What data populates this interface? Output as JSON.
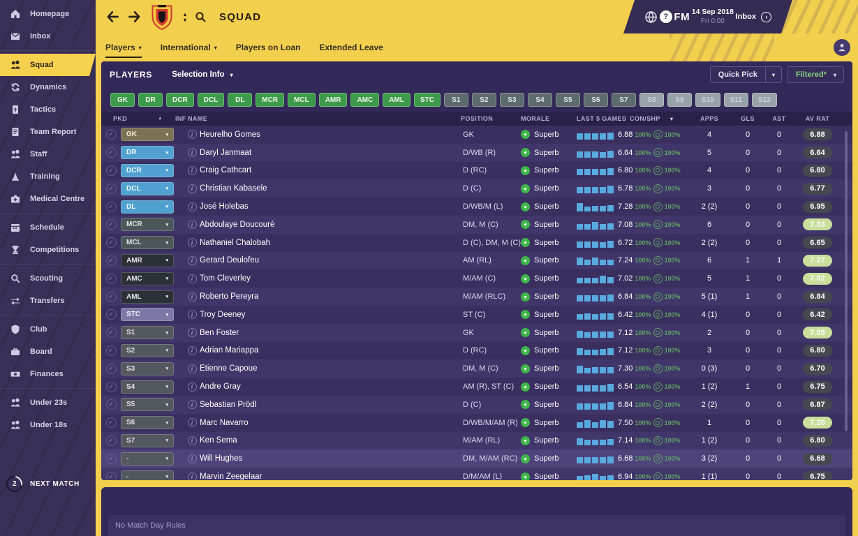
{
  "header": {
    "title": "SQUAD",
    "date": "14 Sep 2018",
    "time": "Fri 0:00",
    "fm": "FM",
    "inbox": "Inbox"
  },
  "tabs": [
    {
      "label": "Players",
      "caret": true,
      "active": true
    },
    {
      "label": "International",
      "caret": true,
      "active": false
    },
    {
      "label": "Players on Loan",
      "caret": false,
      "active": false
    },
    {
      "label": "Extended Leave",
      "caret": false,
      "active": false
    }
  ],
  "sidebar": {
    "groups": [
      [
        {
          "label": "Homepage",
          "icon": "home-icon"
        },
        {
          "label": "Inbox",
          "icon": "mail-icon"
        }
      ],
      [
        {
          "label": "Squad",
          "icon": "squad-icon",
          "active": true
        },
        {
          "label": "Dynamics",
          "icon": "dynamics-icon"
        },
        {
          "label": "Tactics",
          "icon": "tactics-icon"
        },
        {
          "label": "Team Report",
          "icon": "report-icon"
        },
        {
          "label": "Staff",
          "icon": "staff-icon"
        },
        {
          "label": "Training",
          "icon": "training-icon"
        },
        {
          "label": "Medical Centre",
          "icon": "medical-icon"
        }
      ],
      [
        {
          "label": "Schedule",
          "icon": "calendar-icon"
        },
        {
          "label": "Competitions",
          "icon": "trophy-icon"
        }
      ],
      [
        {
          "label": "Scouting",
          "icon": "scout-icon"
        },
        {
          "label": "Transfers",
          "icon": "transfers-icon"
        }
      ],
      [
        {
          "label": "Club",
          "icon": "shield-icon"
        },
        {
          "label": "Board",
          "icon": "briefcase-icon"
        },
        {
          "label": "Finances",
          "icon": "money-icon"
        }
      ],
      [
        {
          "label": "Under 23s",
          "icon": "u23-icon"
        },
        {
          "label": "Under 18s",
          "icon": "u18-icon"
        }
      ]
    ],
    "next_match": {
      "label": "NEXT MATCH",
      "count": "2"
    }
  },
  "panel": {
    "title": "PLAYERS",
    "selection_info": "Selection Info",
    "quick_pick": "Quick Pick",
    "filtered": "Filtered*"
  },
  "position_filters": [
    {
      "label": "GK",
      "state": "active"
    },
    {
      "label": "DR",
      "state": "active"
    },
    {
      "label": "DCR",
      "state": "active"
    },
    {
      "label": "DCL",
      "state": "active"
    },
    {
      "label": "DL",
      "state": "active"
    },
    {
      "label": "MCR",
      "state": "active"
    },
    {
      "label": "MCL",
      "state": "active"
    },
    {
      "label": "AMR",
      "state": "active"
    },
    {
      "label": "AMC",
      "state": "active"
    },
    {
      "label": "AML",
      "state": "active"
    },
    {
      "label": "STC",
      "state": "active"
    },
    {
      "label": "S1",
      "state": "sub"
    },
    {
      "label": "S2",
      "state": "sub"
    },
    {
      "label": "S3",
      "state": "sub"
    },
    {
      "label": "S4",
      "state": "sub"
    },
    {
      "label": "S5",
      "state": "sub"
    },
    {
      "label": "S6",
      "state": "sub"
    },
    {
      "label": "S7",
      "state": "sub"
    },
    {
      "label": "S8",
      "state": "empty"
    },
    {
      "label": "S9",
      "state": "empty"
    },
    {
      "label": "S10",
      "state": "empty"
    },
    {
      "label": "S11",
      "state": "empty"
    },
    {
      "label": "S12",
      "state": "empty"
    }
  ],
  "table": {
    "headers": {
      "pkd": "PKD",
      "inf": "INF",
      "name": "NAME",
      "position": "POSITION",
      "morale": "MORALE",
      "last5": "LAST 5 GAMES",
      "conshp": "CON/SHP",
      "apps": "APPS",
      "gls": "GLS",
      "ast": "AST",
      "avrat": "AV RAT"
    }
  },
  "players": [
    {
      "pkd": "GK",
      "cat": "gk",
      "name": "Heurelho Gomes",
      "position": "GK",
      "morale": "Superb",
      "last5": "6.88",
      "bars": [
        9,
        9,
        9,
        9,
        10
      ],
      "con": "100%",
      "shp": "100%",
      "apps": "4",
      "gls": "0",
      "ast": "0",
      "rating": "6.88",
      "high": false,
      "selected": false
    },
    {
      "pkd": "DR",
      "cat": "def",
      "name": "Daryl Janmaat",
      "position": "D/WB (R)",
      "morale": "Superb",
      "last5": "6.64",
      "bars": [
        9,
        9,
        9,
        8,
        10
      ],
      "con": "100%",
      "shp": "100%",
      "apps": "5",
      "gls": "0",
      "ast": "0",
      "rating": "6.64",
      "high": false,
      "selected": false
    },
    {
      "pkd": "DCR",
      "cat": "def",
      "name": "Craig Cathcart",
      "position": "D (RC)",
      "morale": "Superb",
      "last5": "6.80",
      "bars": [
        9,
        9,
        9,
        9,
        10
      ],
      "con": "100%",
      "shp": "100%",
      "apps": "4",
      "gls": "0",
      "ast": "0",
      "rating": "6.80",
      "high": false,
      "selected": false
    },
    {
      "pkd": "DCL",
      "cat": "def",
      "name": "Christian Kabasele",
      "position": "D (C)",
      "morale": "Superb",
      "last5": "6.78",
      "bars": [
        9,
        9,
        9,
        9,
        11
      ],
      "con": "100%",
      "shp": "100%",
      "apps": "3",
      "gls": "0",
      "ast": "0",
      "rating": "6.77",
      "high": false,
      "selected": false
    },
    {
      "pkd": "DL",
      "cat": "def",
      "name": "José Holebas",
      "position": "D/WB/M (L)",
      "morale": "Superb",
      "last5": "7.28",
      "bars": [
        12,
        7,
        8,
        8,
        9
      ],
      "con": "100%",
      "shp": "100%",
      "apps": "2 (2)",
      "gls": "0",
      "ast": "0",
      "rating": "6.95",
      "high": false,
      "selected": false
    },
    {
      "pkd": "MCR",
      "cat": "mid",
      "name": "Abdoulaye Doucouré",
      "position": "DM, M (C)",
      "morale": "Superb",
      "last5": "7.08",
      "bars": [
        8,
        8,
        11,
        8,
        9
      ],
      "con": "100%",
      "shp": "100%",
      "apps": "6",
      "gls": "0",
      "ast": "0",
      "rating": "7.03",
      "high": true,
      "selected": false
    },
    {
      "pkd": "MCL",
      "cat": "mid",
      "name": "Nathaniel Chalobah",
      "position": "D (C), DM, M (C)",
      "morale": "Superb",
      "last5": "6.72",
      "bars": [
        9,
        9,
        9,
        8,
        10
      ],
      "con": "100%",
      "shp": "100%",
      "apps": "2 (2)",
      "gls": "0",
      "ast": "0",
      "rating": "6.65",
      "high": false,
      "selected": false
    },
    {
      "pkd": "AMR",
      "cat": "am",
      "name": "Gerard Deulofeu",
      "position": "AM (RL)",
      "morale": "Superb",
      "last5": "7.24",
      "bars": [
        11,
        8,
        11,
        8,
        8
      ],
      "con": "100%",
      "shp": "100%",
      "apps": "6",
      "gls": "1",
      "ast": "1",
      "rating": "7.27",
      "high": true,
      "selected": false
    },
    {
      "pkd": "AMC",
      "cat": "am",
      "name": "Tom Cleverley",
      "position": "M/AM (C)",
      "morale": "Superb",
      "last5": "7.02",
      "bars": [
        8,
        8,
        8,
        11,
        9
      ],
      "con": "100%",
      "shp": "100%",
      "apps": "5",
      "gls": "1",
      "ast": "0",
      "rating": "7.02",
      "high": true,
      "selected": false
    },
    {
      "pkd": "AML",
      "cat": "am",
      "name": "Roberto Pereyra",
      "position": "M/AM (RLC)",
      "morale": "Superb",
      "last5": "6.84",
      "bars": [
        9,
        9,
        9,
        9,
        10
      ],
      "con": "100%",
      "shp": "100%",
      "apps": "5 (1)",
      "gls": "1",
      "ast": "0",
      "rating": "6.84",
      "high": false,
      "selected": false
    },
    {
      "pkd": "STC",
      "cat": "st",
      "name": "Troy Deeney",
      "position": "ST (C)",
      "morale": "Superb",
      "last5": "6.42",
      "bars": [
        8,
        9,
        8,
        9,
        9
      ],
      "con": "100%",
      "shp": "100%",
      "apps": "4 (1)",
      "gls": "0",
      "ast": "0",
      "rating": "6.42",
      "high": false,
      "selected": false
    },
    {
      "pkd": "S1",
      "cat": "sub",
      "name": "Ben Foster",
      "position": "GK",
      "morale": "Superb",
      "last5": "7.12",
      "bars": [
        10,
        8,
        9,
        9,
        9
      ],
      "con": "100%",
      "shp": "100%",
      "apps": "2",
      "gls": "0",
      "ast": "0",
      "rating": "7.05",
      "high": true,
      "selected": false
    },
    {
      "pkd": "S2",
      "cat": "sub",
      "name": "Adrian Mariappa",
      "position": "D (RC)",
      "morale": "Superb",
      "last5": "7.12",
      "bars": [
        10,
        8,
        8,
        9,
        10
      ],
      "con": "100%",
      "shp": "100%",
      "apps": "3",
      "gls": "0",
      "ast": "0",
      "rating": "6.80",
      "high": false,
      "selected": false
    },
    {
      "pkd": "S3",
      "cat": "sub",
      "name": "Etienne Capoue",
      "position": "DM, M (C)",
      "morale": "Superb",
      "last5": "7.30",
      "bars": [
        11,
        8,
        9,
        9,
        9
      ],
      "con": "100%",
      "shp": "100%",
      "apps": "0 (3)",
      "gls": "0",
      "ast": "0",
      "rating": "6.70",
      "high": false,
      "selected": false
    },
    {
      "pkd": "S4",
      "cat": "sub",
      "name": "Andre Gray",
      "position": "AM (R), ST (C)",
      "morale": "Superb",
      "last5": "6.54",
      "bars": [
        9,
        9,
        9,
        9,
        11
      ],
      "con": "100%",
      "shp": "100%",
      "apps": "1 (2)",
      "gls": "1",
      "ast": "0",
      "rating": "6.75",
      "high": false,
      "selected": false
    },
    {
      "pkd": "S5",
      "cat": "sub",
      "name": "Sebastian Prödl",
      "position": "D (C)",
      "morale": "Superb",
      "last5": "6.84",
      "bars": [
        9,
        9,
        9,
        9,
        11
      ],
      "con": "100%",
      "shp": "100%",
      "apps": "2 (2)",
      "gls": "0",
      "ast": "0",
      "rating": "6.87",
      "high": false,
      "selected": false
    },
    {
      "pkd": "S6",
      "cat": "sub",
      "name": "Marc Navarro",
      "position": "D/WB/M/AM (R)",
      "morale": "Superb",
      "last5": "7.50",
      "bars": [
        8,
        11,
        8,
        11,
        10
      ],
      "con": "100%",
      "shp": "100%",
      "apps": "1",
      "gls": "0",
      "ast": "0",
      "rating": "7.20",
      "high": true,
      "selected": false
    },
    {
      "pkd": "S7",
      "cat": "sub",
      "name": "Ken Sema",
      "position": "M/AM (RL)",
      "morale": "Superb",
      "last5": "7.14",
      "bars": [
        10,
        8,
        8,
        8,
        9
      ],
      "con": "100%",
      "shp": "100%",
      "apps": "1 (2)",
      "gls": "0",
      "ast": "0",
      "rating": "6.80",
      "high": false,
      "selected": false
    },
    {
      "pkd": "-",
      "cat": "sub",
      "name": "Will Hughes",
      "position": "DM, M/AM (RC)",
      "morale": "Superb",
      "last5": "6.68",
      "bars": [
        9,
        9,
        9,
        9,
        10
      ],
      "con": "100%",
      "shp": "100%",
      "apps": "3 (2)",
      "gls": "0",
      "ast": "0",
      "rating": "6.68",
      "high": false,
      "selected": true
    },
    {
      "pkd": "-",
      "cat": "sub",
      "name": "Marvin Zeegelaar",
      "position": "D/M/AM (L)",
      "morale": "Superb",
      "last5": "6.94",
      "bars": [
        8,
        9,
        11,
        8,
        9
      ],
      "con": "100%",
      "shp": "100%",
      "apps": "1 (1)",
      "gls": "0",
      "ast": "0",
      "rating": "6.75",
      "high": false,
      "selected": false
    }
  ],
  "bottom": {
    "message": "No Match Day Rules"
  },
  "colors": {
    "accent_yellow": "#f3cf4e",
    "panel_purple": "#332958",
    "filter_green": "#3e9a4b",
    "morale_green": "#3fb54a",
    "bar_blue": "#58aadf",
    "rating_high_green": "#c9de9b",
    "condition_green": "#5fa463"
  }
}
